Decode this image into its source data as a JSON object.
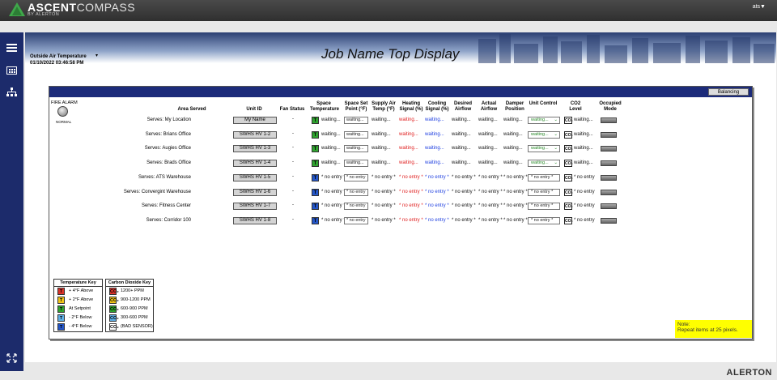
{
  "app": {
    "brand_bold": "ASCENT",
    "brand_thin": "COMPASS",
    "brand_sub": "BY ALERTON",
    "user": "ats▼"
  },
  "header": {
    "oat_label": "Outside Air Temperature",
    "oat_caret": "▾",
    "timestamp": "01/10/2022 03:46:58 PM",
    "title": "Job Name Top Display"
  },
  "panel": {
    "balancing_label": "Balancing",
    "fire_alarm": "FIRE ALARM",
    "fire_state": "NORMAL",
    "headers": [
      "Area Served",
      "Unit ID",
      "Fan Status",
      "Space Temperature",
      "Space Set Point (°F)",
      "Supply Air Temp (°F)",
      "Heating Signal (%)",
      "Cooling Signal (%)",
      "Desired Airflow",
      "Actual Airflow",
      "Damper Position",
      "Unit Control",
      "CO2 Level",
      "Occupied Mode"
    ],
    "rows": [
      {
        "area": "Serves: My Location",
        "unit": "My Name",
        "fan": "-",
        "temp_icon": "T",
        "temp_color": "#2fa32f",
        "space": "waiting...",
        "set": "waiting...",
        "supply": "waiting...",
        "heat": "waiting...",
        "cool": "waiting...",
        "desired": "waiting...",
        "actual": "waiting...",
        "damper": "waiting...",
        "ctrl": "waiting...",
        "co2": "waiting...",
        "pending": true
      },
      {
        "area": "Serves: Brians Office",
        "unit": "SWHS HV 1-2",
        "fan": "-",
        "temp_icon": "T",
        "temp_color": "#2fa32f",
        "space": "waiting...",
        "set": "waiting...",
        "supply": "waiting...",
        "heat": "waiting...",
        "cool": "waiting...",
        "desired": "waiting...",
        "actual": "waiting...",
        "damper": "waiting...",
        "ctrl": "waiting...",
        "co2": "waiting...",
        "pending": true
      },
      {
        "area": "Serves: Augies Office",
        "unit": "SWHS HV 1-3",
        "fan": "-",
        "temp_icon": "T",
        "temp_color": "#2fa32f",
        "space": "waiting...",
        "set": "waiting...",
        "supply": "waiting...",
        "heat": "waiting...",
        "cool": "waiting...",
        "desired": "waiting...",
        "actual": "waiting...",
        "damper": "waiting...",
        "ctrl": "waiting...",
        "co2": "waiting...",
        "pending": true
      },
      {
        "area": "Serves: Brads Office",
        "unit": "SWHS HV 1-4",
        "fan": "-",
        "temp_icon": "T",
        "temp_color": "#2fa32f",
        "space": "waiting...",
        "set": "waiting...",
        "supply": "waiting...",
        "heat": "waiting...",
        "cool": "waiting...",
        "desired": "waiting...",
        "actual": "waiting...",
        "damper": "waiting...",
        "ctrl": "waiting...",
        "co2": "waiting...",
        "pending": true
      },
      {
        "area": "Serves: ATS Warehouse",
        "unit": "SWHS HV 1-5",
        "fan": "-",
        "temp_icon": "T",
        "temp_color": "#2456c8",
        "space": "* no entry *",
        "set": "* no entry",
        "supply": "* no entry *",
        "heat": "* no entry *",
        "cool": "* no entry *",
        "desired": "* no entry *",
        "actual": "* no entry *",
        "damper": "* no entry *",
        "ctrl": "* no entry *",
        "co2": "* no entry",
        "pending": false
      },
      {
        "area": "Serves: Convergint Warehouse",
        "unit": "SWHS HV 1-6",
        "fan": "-",
        "temp_icon": "T",
        "temp_color": "#2456c8",
        "space": "* no entry *",
        "set": "* no entry",
        "supply": "* no entry *",
        "heat": "* no entry *",
        "cool": "* no entry *",
        "desired": "* no entry *",
        "actual": "* no entry *",
        "damper": "* no entry *",
        "ctrl": "* no entry *",
        "co2": "* no entry",
        "pending": false
      },
      {
        "area": "Serves: Fitness Center",
        "unit": "SWHS HV 1-7",
        "fan": "-",
        "temp_icon": "T",
        "temp_color": "#2456c8",
        "space": "* no entry *",
        "set": "* no entry",
        "supply": "* no entry *",
        "heat": "* no entry *",
        "cool": "* no entry *",
        "desired": "* no entry *",
        "actual": "* no entry *",
        "damper": "* no entry *",
        "ctrl": "* no entry *",
        "co2": "* no entry",
        "pending": false
      },
      {
        "area": "Serves: Corridor 100",
        "unit": "SWHS HV 1-8",
        "fan": "-",
        "temp_icon": "T",
        "temp_color": "#2456c8",
        "space": "* no entry *",
        "set": "* no entry",
        "supply": "* no entry *",
        "heat": "* no entry *",
        "cool": "* no entry *",
        "desired": "* no entry *",
        "actual": "* no entry *",
        "damper": "* no entry *",
        "ctrl": "* no entry *",
        "co2": "* no entry",
        "pending": false
      }
    ],
    "temp_key": {
      "title": "Temperature Key",
      "items": [
        {
          "label": "+ 4°F Above",
          "color": "#d9332a"
        },
        {
          "label": "+ 2°F Above",
          "color": "#f0c419"
        },
        {
          "label": "At Setpoint",
          "color": "#2fa32f"
        },
        {
          "label": "- 2°F Below",
          "color": "#5fb0e8"
        },
        {
          "label": "- 4°F Below",
          "color": "#2456c8"
        }
      ]
    },
    "co2_key": {
      "title": "Carbon Dioxide Key",
      "items": [
        {
          "label": "1200+ PPM",
          "color": "#d9332a"
        },
        {
          "label": "900-1200 PPM",
          "color": "#f0c419"
        },
        {
          "label": "600-900 PPM",
          "color": "#2fa32f"
        },
        {
          "label": "300-600 PPM",
          "color": "#5fb0e8"
        },
        {
          "label": "(BAD SENSOR)",
          "color": "#ffffff"
        }
      ]
    },
    "note_line1": "Note:",
    "note_line2": "Repeat items at 25 pixels."
  },
  "footer": {
    "brand": "ALERTON"
  }
}
